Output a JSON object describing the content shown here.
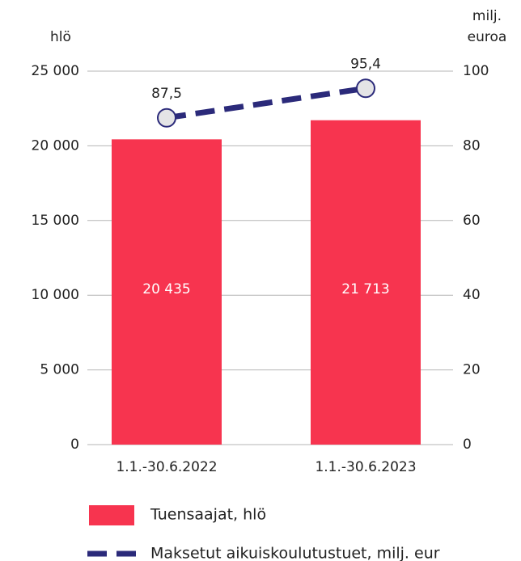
{
  "chart_data": {
    "type": "bar",
    "y_label": "hlö",
    "y2_label": [
      "milj.",
      "euroa"
    ],
    "categories": [
      "1.1.-30.6.2022",
      "1.1.-30.6.2023"
    ],
    "series": [
      {
        "name": "Tuensaajat, hlö",
        "type": "bar",
        "color": "#f7344f",
        "values": [
          20435,
          21713
        ],
        "value_labels": [
          "20 435",
          "21 713"
        ]
      },
      {
        "name": "Maksetut aikuiskoulutustuet, milj. eur",
        "type": "line",
        "axis": "y2",
        "color": "#2b2a7a",
        "values": [
          87.5,
          95.4
        ],
        "value_labels": [
          "87,5",
          "95,4"
        ]
      }
    ],
    "ylim": [
      0,
      25000
    ],
    "yticks": [
      {
        "value": 0,
        "label": "0"
      },
      {
        "value": 5000,
        "label": "5 000"
      },
      {
        "value": 10000,
        "label": "10 000"
      },
      {
        "value": 15000,
        "label": "15 000"
      },
      {
        "value": 20000,
        "label": "20 000"
      },
      {
        "value": 25000,
        "label": "25 000"
      }
    ],
    "y2lim": [
      0,
      100
    ],
    "y2ticks": [
      0,
      20,
      40,
      60,
      80,
      100
    ],
    "grid": true
  }
}
